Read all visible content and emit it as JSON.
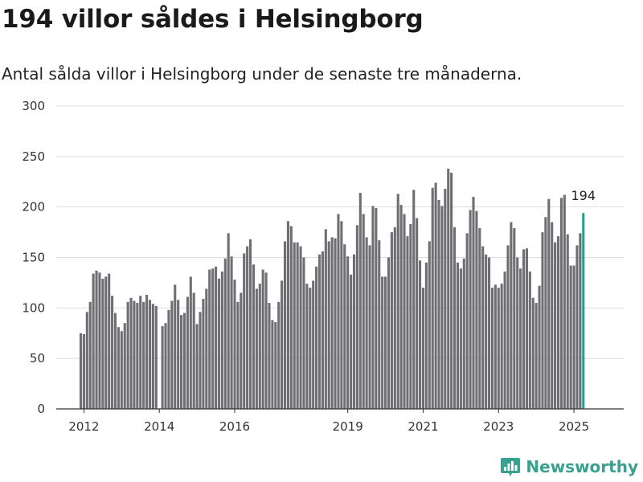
{
  "title": "194 villor såldes i Helsingborg",
  "subtitle": "Antal sålda villor i Helsingborg under de senaste tre månaderna.",
  "brand": {
    "name": "Newsworthy",
    "icon": "newsworthy-logo-icon"
  },
  "colors": {
    "bar": "#6e6e73",
    "highlight": "#2a9d8f",
    "grid": "#dddddd",
    "axis": "#333333",
    "brand": "#3aa08f"
  },
  "chart_data": {
    "type": "bar",
    "title": "",
    "xlabel": "",
    "ylabel": "",
    "ylim": [
      0,
      300
    ],
    "yticks": [
      0,
      50,
      100,
      150,
      200,
      250,
      300
    ],
    "grid": true,
    "xtick_labels": [
      "2012",
      "2014",
      "2016",
      "2019",
      "2021",
      "2023",
      "2025"
    ],
    "xtick_dates": [
      "2012-01",
      "2014-01",
      "2016-01",
      "2019-01",
      "2021-01",
      "2023-01",
      "2025-01"
    ],
    "start": "2011-12",
    "highlight_label": "194",
    "values": [
      75,
      74,
      96,
      106,
      134,
      137,
      135,
      129,
      131,
      134,
      112,
      95,
      81,
      77,
      85,
      106,
      110,
      107,
      105,
      112,
      106,
      113,
      108,
      104,
      102,
      null,
      82,
      85,
      98,
      107,
      123,
      108,
      93,
      95,
      111,
      131,
      115,
      84,
      96,
      109,
      119,
      138,
      139,
      141,
      129,
      136,
      149,
      174,
      151,
      128,
      106,
      115,
      154,
      161,
      168,
      143,
      119,
      124,
      138,
      135,
      105,
      88,
      86,
      106,
      127,
      166,
      186,
      181,
      165,
      165,
      161,
      150,
      124,
      120,
      127,
      141,
      153,
      156,
      178,
      166,
      170,
      169,
      193,
      186,
      163,
      151,
      133,
      153,
      182,
      214,
      193,
      170,
      162,
      201,
      199,
      167,
      131,
      131,
      150,
      175,
      180,
      213,
      202,
      193,
      171,
      183,
      217,
      189,
      147,
      120,
      145,
      166,
      219,
      224,
      207,
      201,
      218,
      238,
      234,
      180,
      145,
      139,
      149,
      174,
      197,
      210,
      196,
      179,
      161,
      153,
      150,
      120,
      123,
      120,
      124,
      136,
      162,
      185,
      179,
      150,
      139,
      158,
      159,
      136,
      110,
      105,
      122,
      175,
      190,
      208,
      185,
      165,
      171,
      209,
      212,
      173,
      142,
      142,
      162,
      174,
      194
    ]
  }
}
